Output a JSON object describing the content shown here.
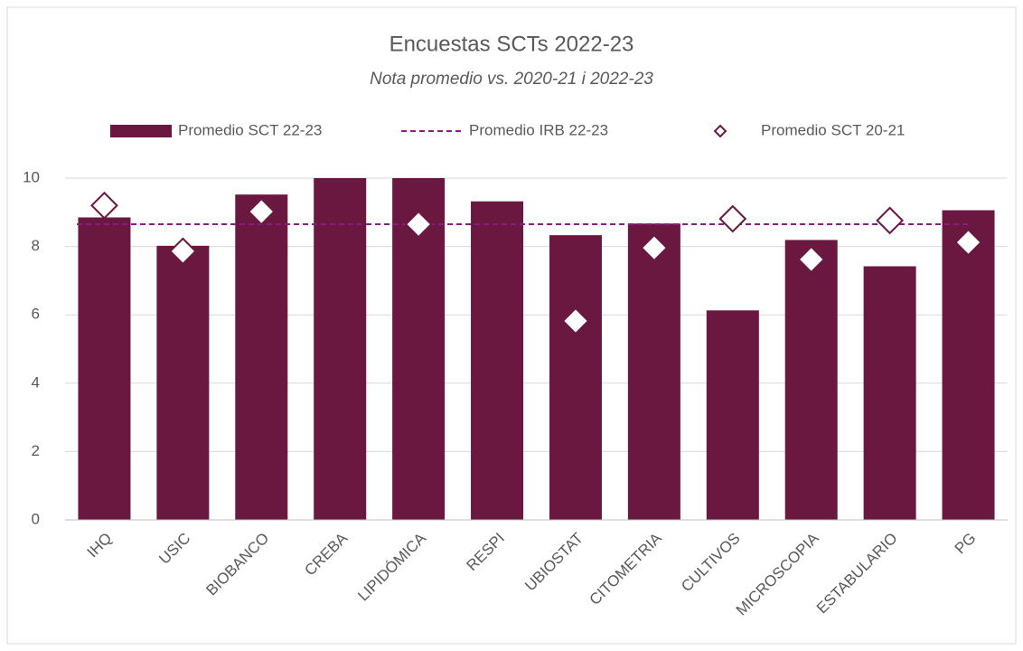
{
  "chart_data": {
    "type": "combo",
    "title": "Encuestas SCTs 2022-23",
    "subtitle": "Nota promedio vs. 2020-21 i 2022-23",
    "categories": [
      "IHQ",
      "USIC",
      "BIOBANCO",
      "CREBA",
      "LIPIDÓMICA",
      "RESPI",
      "UBIOSTAT",
      "CITOMETRIA",
      "CULTIVOS",
      "MICROSCOPIA",
      "ESTABULARIO",
      "PG"
    ],
    "series": [
      {
        "name": "Promedio SCT 22-23",
        "type": "bar",
        "color": "#6b1840",
        "values": [
          8.85,
          8.02,
          9.52,
          10,
          10,
          9.32,
          8.33,
          8.67,
          6.13,
          8.19,
          7.42,
          9.06
        ]
      },
      {
        "name": "Promedio IRB 22-23",
        "type": "line",
        "color": "#8a1c86",
        "value": 8.65
      },
      {
        "name": "Promedio SCT 20-21",
        "type": "scatter",
        "color": "#6b1840",
        "values": [
          9.2,
          7.86,
          9.02,
          null,
          8.65,
          null,
          5.82,
          7.96,
          8.81,
          7.62,
          8.76,
          8.12
        ]
      }
    ],
    "ylim": [
      0,
      10
    ],
    "yticks": [
      0,
      2,
      4,
      6,
      8,
      10
    ],
    "grid": true,
    "legend": "top"
  }
}
